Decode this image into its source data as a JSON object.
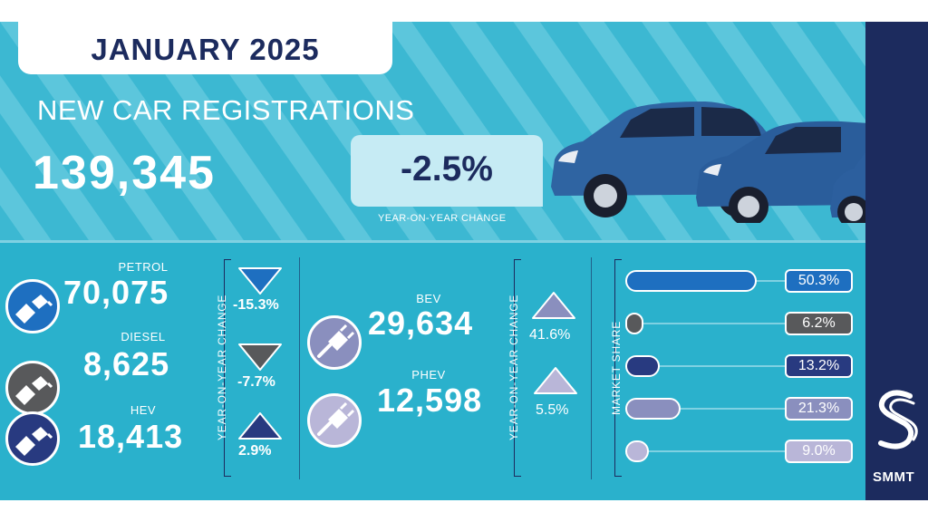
{
  "header": {
    "month": "JANUARY 2025",
    "title": "NEW CAR REGISTRATIONS",
    "total": "139,345",
    "yoy_change": "-2.5%",
    "yoy_label": "YEAR-ON-YEAR CHANGE"
  },
  "fuel_types": [
    {
      "name": "PETROL",
      "value": "70,075",
      "change": "-15.3%",
      "direction": "down",
      "color": "#1e6fc0",
      "icon": "fuel-pump-icon"
    },
    {
      "name": "DIESEL",
      "value": "8,625",
      "change": "-7.7%",
      "direction": "down",
      "color": "#58595b",
      "icon": "fuel-pump-icon"
    },
    {
      "name": "HEV",
      "value": "18,413",
      "change": "2.9%",
      "direction": "up",
      "color": "#283a80",
      "icon": "fuel-pump-icon"
    },
    {
      "name": "BEV",
      "value": "29,634",
      "change": "41.6%",
      "direction": "up",
      "color": "#8a8fbe",
      "icon": "charging-plug-icon"
    },
    {
      "name": "PHEV",
      "value": "12,598",
      "change": "5.5%",
      "direction": "up",
      "color": "#b9b6d8",
      "icon": "charging-plug-icon"
    }
  ],
  "yoy_axis_label": "YEAR-ON-YEAR CHANGE",
  "market_share": {
    "label": "MARKET SHARE",
    "items": [
      {
        "value": 50.3,
        "label": "50.3%",
        "color": "#1e6fc0"
      },
      {
        "value": 6.2,
        "label": "6.2%",
        "color": "#58595b"
      },
      {
        "value": 13.2,
        "label": "13.2%",
        "color": "#283a80"
      },
      {
        "value": 21.3,
        "label": "21.3%",
        "color": "#8a8fbe"
      },
      {
        "value": 9.0,
        "label": "9.0%",
        "color": "#b9b6d8"
      }
    ]
  },
  "brand": {
    "name": "SMMT",
    "color": "#1c2b5e"
  },
  "colors": {
    "accent": "#3cb8d2",
    "dark": "#1c2b5e",
    "light_panel": "#c6ebf4"
  }
}
